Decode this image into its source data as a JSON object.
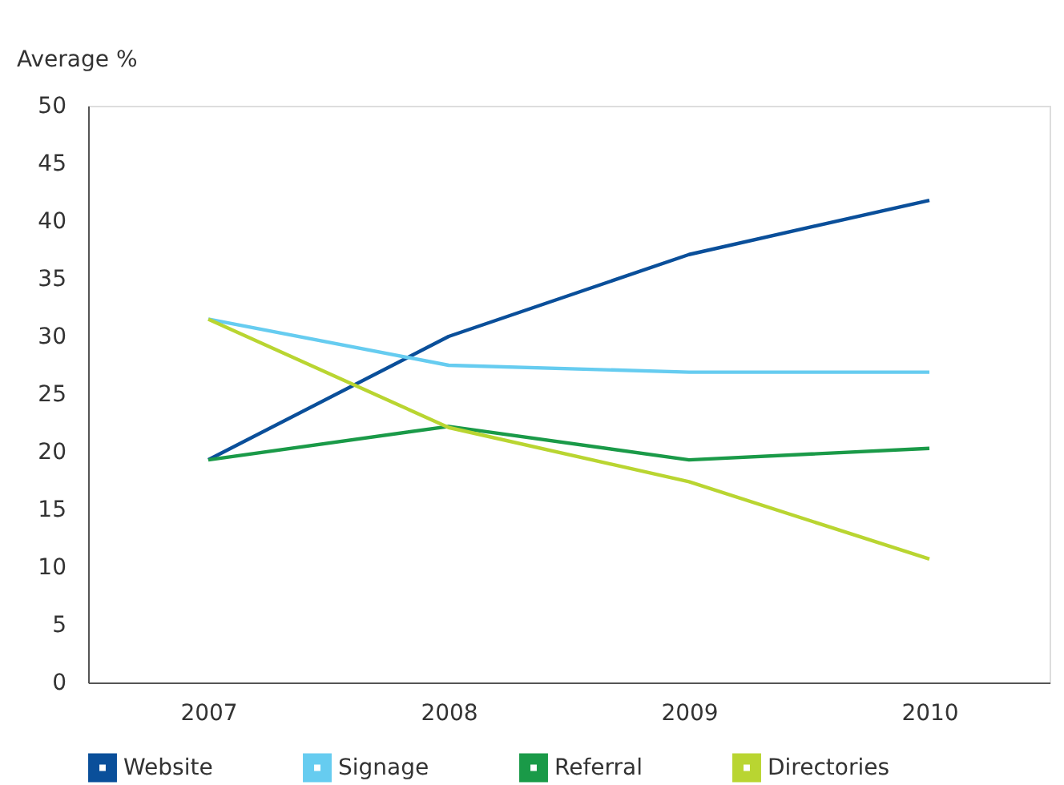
{
  "chart_data": {
    "type": "line",
    "ylabel": "Average %",
    "categories": [
      "2007",
      "2008",
      "2009",
      "2010"
    ],
    "series": [
      {
        "name": "Website",
        "color": "#0a4f9a",
        "values": [
          19.3,
          30,
          37.1,
          41.8
        ]
      },
      {
        "name": "Signage",
        "color": "#66ccf0",
        "values": [
          31.5,
          27.5,
          26.9,
          26.9
        ]
      },
      {
        "name": "Referral",
        "color": "#1a9a48",
        "values": [
          19.3,
          22.2,
          19.3,
          20.3
        ]
      },
      {
        "name": "Directories",
        "color": "#b9d531",
        "values": [
          31.5,
          22.1,
          17.4,
          10.7
        ]
      }
    ],
    "ylim": [
      0,
      50
    ],
    "yticks": [
      0,
      5,
      10,
      15,
      20,
      25,
      30,
      35,
      40,
      45,
      50
    ],
    "grid": false,
    "legend": "bottom",
    "marker": "none",
    "line_style": "solid"
  }
}
